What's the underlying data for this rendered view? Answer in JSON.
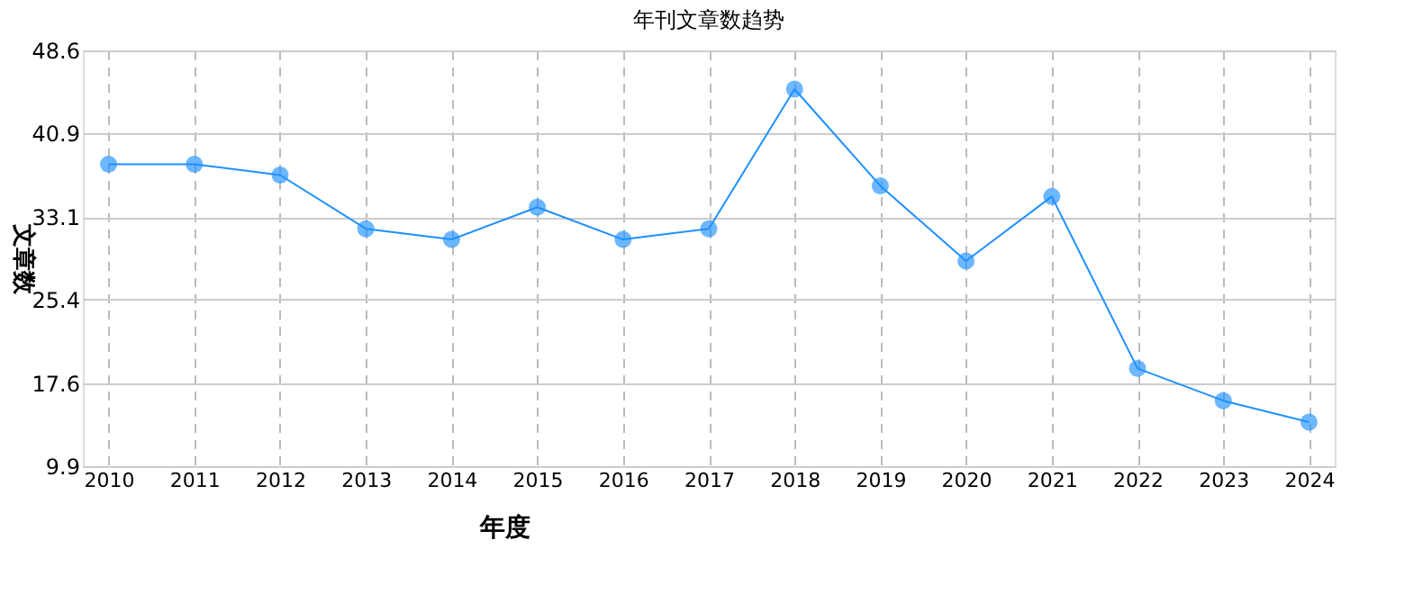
{
  "chart_data": {
    "type": "line",
    "title": "年刊文章数趋势",
    "xlabel": "年度",
    "ylabel": "文章数",
    "categories": [
      "2010",
      "2011",
      "2012",
      "2013",
      "2014",
      "2015",
      "2016",
      "2017",
      "2018",
      "2019",
      "2020",
      "2021",
      "2022",
      "2023",
      "2024"
    ],
    "series": [
      {
        "color": "#1e90ff",
        "values": [
          38,
          38,
          37,
          32,
          31,
          34,
          31,
          32,
          45,
          36,
          29,
          35,
          19,
          16,
          14
        ]
      }
    ],
    "ylim": [
      9.9,
      48.6
    ],
    "yticks": [
      9.9,
      17.6,
      25.4,
      33.1,
      40.9,
      48.6
    ],
    "grid": true,
    "marker": "circle",
    "line_style": "solid",
    "legend": false
  }
}
